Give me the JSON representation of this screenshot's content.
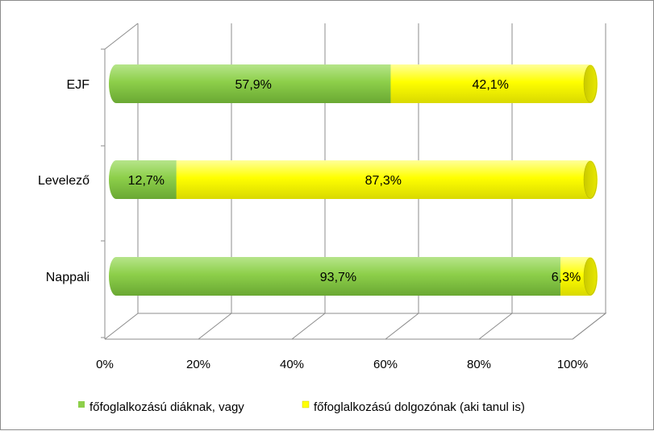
{
  "chart_data": {
    "type": "bar",
    "orientation": "horizontal",
    "stacked": "percent",
    "style": "3d-cylinder",
    "categories": [
      "EJF",
      "Levelező",
      "Nappali"
    ],
    "series": [
      {
        "name": "főfoglalkozású diáknak, vagy",
        "color": "#8dcf4a",
        "values": [
          57.9,
          12.7,
          93.7
        ],
        "labels": [
          "57,9%",
          "12,7%",
          "93,7%"
        ]
      },
      {
        "name": "főfoglalkozású dolgozónak (aki tanul is)",
        "color": "#ffff00",
        "values": [
          42.1,
          87.3,
          6.3
        ],
        "labels": [
          "42,1%",
          "87,3%",
          "6,3%"
        ]
      }
    ],
    "x_ticks": [
      "0%",
      "20%",
      "40%",
      "60%",
      "80%",
      "100%"
    ],
    "xlim": [
      0,
      100
    ],
    "grid": true,
    "legend_position": "bottom"
  }
}
